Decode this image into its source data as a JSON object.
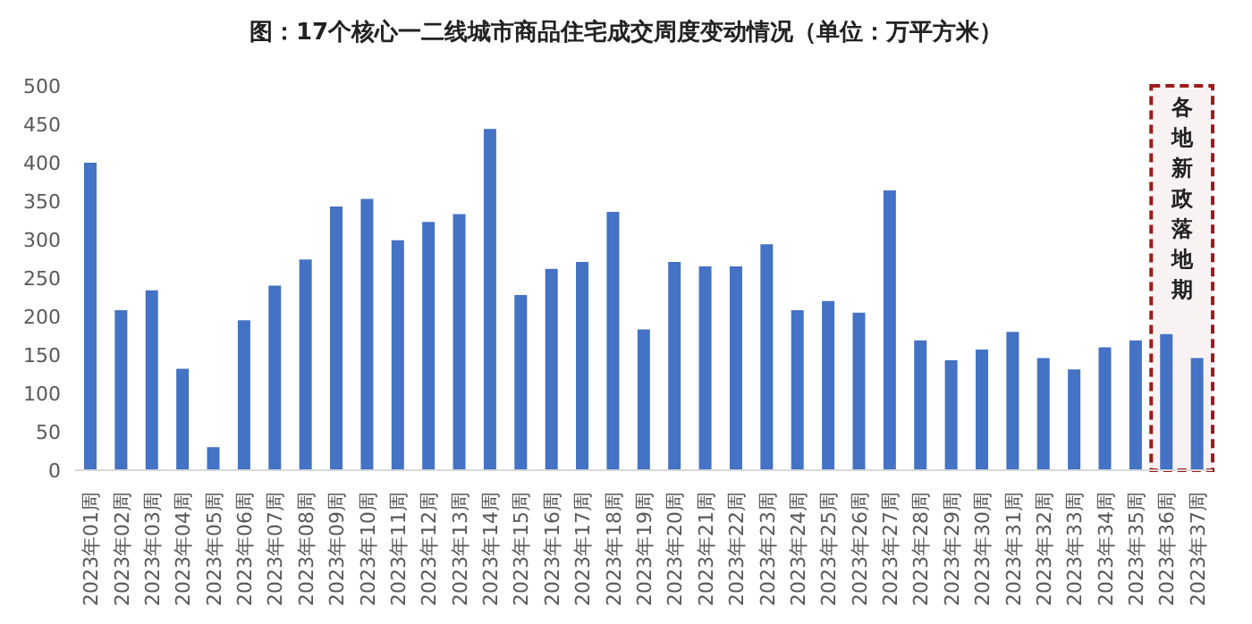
{
  "chart_data": {
    "type": "bar",
    "title": "图：17个核心一二线城市商品住宅成交周度变动情况（单位：万平方米）",
    "categories": [
      "2023年01周",
      "2023年02周",
      "2023年03周",
      "2023年04周",
      "2023年05周",
      "2023年06周",
      "2023年07周",
      "2023年08周",
      "2023年09周",
      "2023年10周",
      "2023年11周",
      "2023年12周",
      "2023年13周",
      "2023年14周",
      "2023年15周",
      "2023年16周",
      "2023年17周",
      "2023年18周",
      "2023年19周",
      "2023年20周",
      "2023年21周",
      "2023年22周",
      "2023年23周",
      "2023年24周",
      "2023年25周",
      "2023年26周",
      "2023年27周",
      "2023年28周",
      "2023年29周",
      "2023年30周",
      "2023年31周",
      "2023年32周",
      "2023年33周",
      "2023年34周",
      "2023年35周",
      "2023年36周",
      "2023年37周"
    ],
    "values": [
      400,
      208,
      234,
      132,
      30,
      195,
      240,
      274,
      343,
      353,
      299,
      323,
      333,
      444,
      228,
      262,
      271,
      336,
      183,
      271,
      265,
      265,
      294,
      208,
      220,
      205,
      364,
      169,
      143,
      157,
      180,
      146,
      131,
      160,
      169,
      177,
      146
    ],
    "color": "#4472c4",
    "ylim": [
      0,
      500
    ],
    "yticks": [
      0,
      50,
      100,
      150,
      200,
      250,
      300,
      350,
      400,
      450,
      500
    ],
    "grid": false,
    "legend": false,
    "bands": [
      {
        "axis": "x",
        "from": "2023年36周",
        "to": "2023年37周",
        "label": "各地新政落地期",
        "color": "#9e1b1b"
      }
    ]
  }
}
